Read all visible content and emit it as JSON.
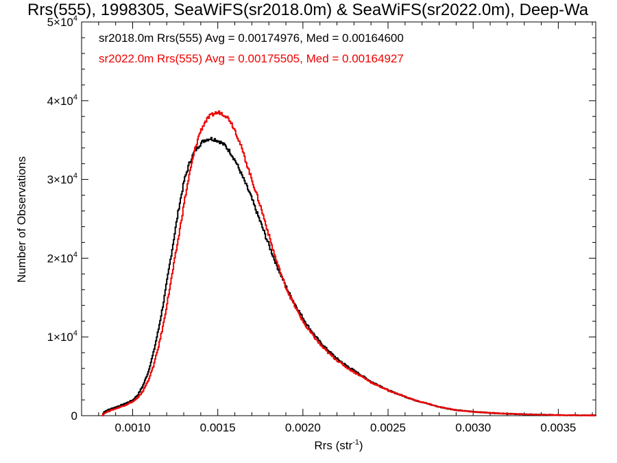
{
  "chart_data": {
    "type": "histogram-step",
    "title": "Rrs(555), 1998305, SeaWiFS(sr2018.0m) & SeaWiFS(sr2022.0m), Deep-Wa",
    "xlabel": "Rrs (str",
    "xlabel_sup": "-1",
    "xlabel_end": ")",
    "ylabel": "Number of Observations",
    "xlim": [
      0.0007,
      0.00372
    ],
    "ylim": [
      0,
      50000
    ],
    "xticks": [
      {
        "value": 0.001,
        "label": "0.0010"
      },
      {
        "value": 0.0015,
        "label": "0.0015"
      },
      {
        "value": 0.002,
        "label": "0.0020"
      },
      {
        "value": 0.0025,
        "label": "0.0025"
      },
      {
        "value": 0.003,
        "label": "0.0030"
      },
      {
        "value": 0.0035,
        "label": "0.0035"
      }
    ],
    "yticks": [
      {
        "value": 0,
        "mant": "0",
        "exp": ""
      },
      {
        "value": 10000,
        "mant": "1×10",
        "exp": "4"
      },
      {
        "value": 20000,
        "mant": "2×10",
        "exp": "4"
      },
      {
        "value": 30000,
        "mant": "3×10",
        "exp": "4"
      },
      {
        "value": 40000,
        "mant": "4×10",
        "exp": "4"
      },
      {
        "value": 50000,
        "mant": "5×10",
        "exp": "4"
      }
    ],
    "grid": false,
    "legend": [
      {
        "text": "sr2018.0m Rrs(555) Avg = 0.00174976, Med = 0.00164600",
        "color": "#000000"
      },
      {
        "text": "sr2022.0m Rrs(555) Avg = 0.00175505, Med = 0.00164927",
        "color": "#ee0000"
      }
    ],
    "series": [
      {
        "color": "#000000",
        "points": [
          [
            0.00082,
            0
          ],
          [
            0.00083,
            500
          ],
          [
            0.00086,
            800
          ],
          [
            0.0009,
            1100
          ],
          [
            0.00095,
            1500
          ],
          [
            0.001,
            2000
          ],
          [
            0.00103,
            2700
          ],
          [
            0.00106,
            3900
          ],
          [
            0.00109,
            5600
          ],
          [
            0.00112,
            8000
          ],
          [
            0.00115,
            11000
          ],
          [
            0.00118,
            14500
          ],
          [
            0.00121,
            18500
          ],
          [
            0.00124,
            22500
          ],
          [
            0.00127,
            26500
          ],
          [
            0.0013,
            29800
          ],
          [
            0.00133,
            32000
          ],
          [
            0.00136,
            33500
          ],
          [
            0.00139,
            34400
          ],
          [
            0.00142,
            35000
          ],
          [
            0.00145,
            35200
          ],
          [
            0.00148,
            35100
          ],
          [
            0.00151,
            34800
          ],
          [
            0.00154,
            34300
          ],
          [
            0.00157,
            33500
          ],
          [
            0.0016,
            32400
          ],
          [
            0.00163,
            31000
          ],
          [
            0.00166,
            29500
          ],
          [
            0.00169,
            28000
          ],
          [
            0.00172,
            26200
          ],
          [
            0.00175,
            24500
          ],
          [
            0.00178,
            22700
          ],
          [
            0.00181,
            21000
          ],
          [
            0.00184,
            19300
          ],
          [
            0.00187,
            17800
          ],
          [
            0.0019,
            16300
          ],
          [
            0.00193,
            15000
          ],
          [
            0.00196,
            13800
          ],
          [
            0.00199,
            12700
          ],
          [
            0.00202,
            11600
          ],
          [
            0.00206,
            10400
          ],
          [
            0.0021,
            9300
          ],
          [
            0.00215,
            8200
          ],
          [
            0.0022,
            7200
          ],
          [
            0.00225,
            6400
          ],
          [
            0.0023,
            5700
          ],
          [
            0.00235,
            5000
          ],
          [
            0.0024,
            4300
          ],
          [
            0.00245,
            3800
          ],
          [
            0.0025,
            3200
          ],
          [
            0.00255,
            2800
          ],
          [
            0.0026,
            2400
          ],
          [
            0.00265,
            2000
          ],
          [
            0.0027,
            1700
          ],
          [
            0.00275,
            1400
          ],
          [
            0.0028,
            1100
          ],
          [
            0.00285,
            900
          ],
          [
            0.0029,
            700
          ],
          [
            0.003,
            500
          ],
          [
            0.0031,
            350
          ],
          [
            0.0032,
            250
          ],
          [
            0.0033,
            170
          ],
          [
            0.0034,
            120
          ],
          [
            0.0035,
            80
          ],
          [
            0.0036,
            50
          ],
          [
            0.00372,
            30
          ]
        ]
      },
      {
        "color": "#ee0000",
        "points": [
          [
            0.00082,
            0
          ],
          [
            0.00083,
            300
          ],
          [
            0.00086,
            600
          ],
          [
            0.0009,
            900
          ],
          [
            0.00095,
            1300
          ],
          [
            0.001,
            1800
          ],
          [
            0.00103,
            2300
          ],
          [
            0.00106,
            3200
          ],
          [
            0.00109,
            4500
          ],
          [
            0.00112,
            6300
          ],
          [
            0.00115,
            8800
          ],
          [
            0.00118,
            11800
          ],
          [
            0.00121,
            15500
          ],
          [
            0.00124,
            19200
          ],
          [
            0.00127,
            23000
          ],
          [
            0.0013,
            27000
          ],
          [
            0.00133,
            30500
          ],
          [
            0.00136,
            33500
          ],
          [
            0.00139,
            35800
          ],
          [
            0.00142,
            37200
          ],
          [
            0.00145,
            38000
          ],
          [
            0.00148,
            38400
          ],
          [
            0.00151,
            38500
          ],
          [
            0.00154,
            38200
          ],
          [
            0.00157,
            37500
          ],
          [
            0.0016,
            36200
          ],
          [
            0.00163,
            34500
          ],
          [
            0.00166,
            32500
          ],
          [
            0.00169,
            30500
          ],
          [
            0.00172,
            28500
          ],
          [
            0.00175,
            26500
          ],
          [
            0.00178,
            24300
          ],
          [
            0.00181,
            22000
          ],
          [
            0.00184,
            19800
          ],
          [
            0.00187,
            17900
          ],
          [
            0.0019,
            16200
          ],
          [
            0.00193,
            14800
          ],
          [
            0.00196,
            13500
          ],
          [
            0.00199,
            12300
          ],
          [
            0.00202,
            11200
          ],
          [
            0.00206,
            10100
          ],
          [
            0.0021,
            9000
          ],
          [
            0.00215,
            7900
          ],
          [
            0.0022,
            7000
          ],
          [
            0.00225,
            6200
          ],
          [
            0.0023,
            5500
          ],
          [
            0.00235,
            4900
          ],
          [
            0.0024,
            4200
          ],
          [
            0.00245,
            3700
          ],
          [
            0.0025,
            3200
          ],
          [
            0.00255,
            2800
          ],
          [
            0.0026,
            2400
          ],
          [
            0.00265,
            2000
          ],
          [
            0.0027,
            1700
          ],
          [
            0.00275,
            1400
          ],
          [
            0.0028,
            1100
          ],
          [
            0.00285,
            900
          ],
          [
            0.0029,
            700
          ],
          [
            0.003,
            500
          ],
          [
            0.0031,
            350
          ],
          [
            0.0032,
            250
          ],
          [
            0.0033,
            170
          ],
          [
            0.0034,
            120
          ],
          [
            0.0035,
            80
          ],
          [
            0.0036,
            50
          ],
          [
            0.00372,
            30
          ]
        ]
      }
    ]
  }
}
